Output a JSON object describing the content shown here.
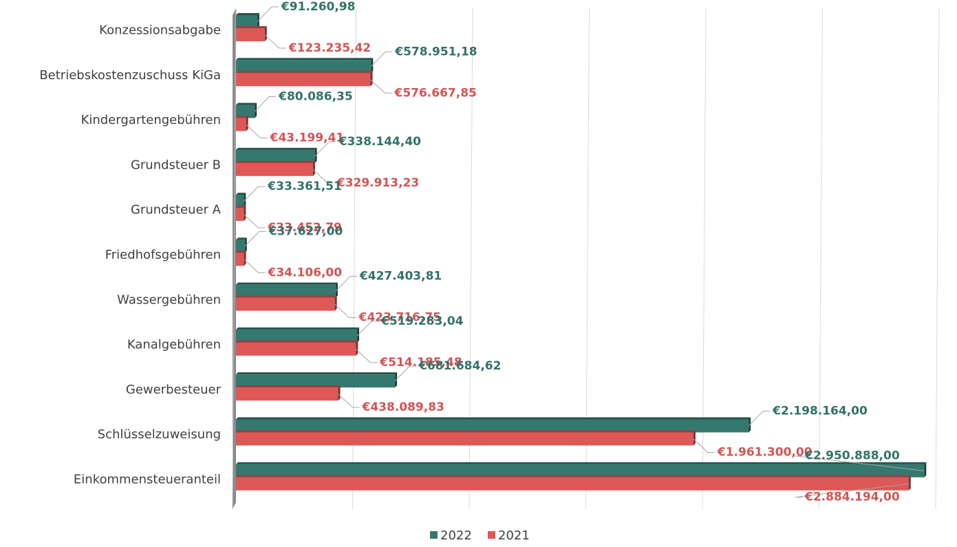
{
  "chart_data": {
    "type": "hbar",
    "categories": [
      "Konzessionsabgabe",
      "Betriebskostenzuschuss KiGa",
      "Kindergartengebühren",
      "Grundsteuer B",
      "Grundsteuer A",
      "Friedhofsgebühren",
      "Wassergebühren",
      "Kanalgebühren",
      "Gewerbesteuer",
      "Schlüsselzuweisung",
      "Einkommensteueranteil"
    ],
    "series": [
      {
        "name": "2022",
        "color": "#35786f",
        "values": [
          91260.98,
          578951.18,
          80086.35,
          338144.4,
          33361.51,
          37627.0,
          427403.81,
          519283.04,
          681684.62,
          2198164.0,
          2950888.0
        ],
        "value_labels": [
          "€91.260,98",
          "€578.951,18",
          "€80.086,35",
          "€338.144,40",
          "€33.361,51",
          "€37.627,00",
          "€427.403,81",
          "€519.283,04",
          "€681.684,62",
          "€2.198.164,00",
          "€2.950.888,00"
        ]
      },
      {
        "name": "2021",
        "color": "#de5858",
        "values": [
          123235.42,
          576667.85,
          43199.41,
          329913.23,
          33452.79,
          34106.0,
          423716.75,
          514185.48,
          438089.83,
          1961300.0,
          2884194.0
        ],
        "value_labels": [
          "€123.235,42",
          "€576.667,85",
          "€43.199,41",
          "€329.913,23",
          "€33.452,79",
          "€34.106,00",
          "€423.716,75",
          "€514.185,48",
          "€438.089,83",
          "€1.961.300,00",
          "€2.884.194,00"
        ]
      }
    ],
    "xlim": [
      0,
      3000000
    ],
    "xticks": [
      0,
      500000,
      1000000,
      1500000,
      2000000,
      2500000,
      3000000
    ],
    "grid": true,
    "legend": "bottom"
  }
}
